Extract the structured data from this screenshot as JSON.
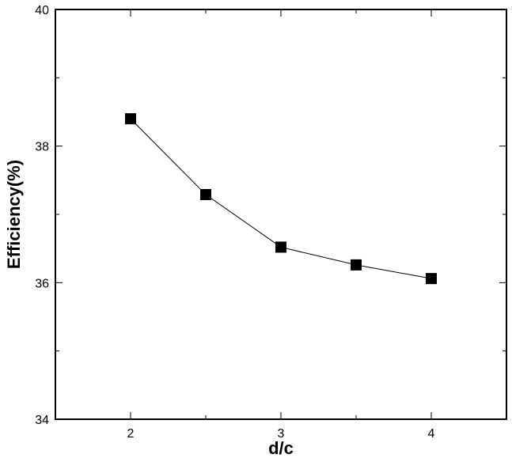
{
  "chart_data": {
    "type": "line",
    "title": "",
    "xlabel": "d/c",
    "ylabel": "Efficiency(%)",
    "xlim": [
      1.5,
      4.5
    ],
    "ylim": [
      34,
      40
    ],
    "x_ticks": [
      2,
      3,
      4
    ],
    "y_ticks": [
      34,
      36,
      38,
      40
    ],
    "x_minor_ticks": [
      2.5,
      3.5
    ],
    "y_minor_ticks": [
      35,
      37,
      39
    ],
    "grid": false,
    "legend": "none",
    "marker": "square",
    "colors": {
      "line": "#000000",
      "marker": "#000000",
      "axes": "#000000"
    },
    "series": [
      {
        "x": [
          2,
          2.5,
          3,
          3.5,
          4
        ],
        "values": [
          38.4,
          37.29,
          36.52,
          36.26,
          36.06
        ]
      }
    ]
  }
}
